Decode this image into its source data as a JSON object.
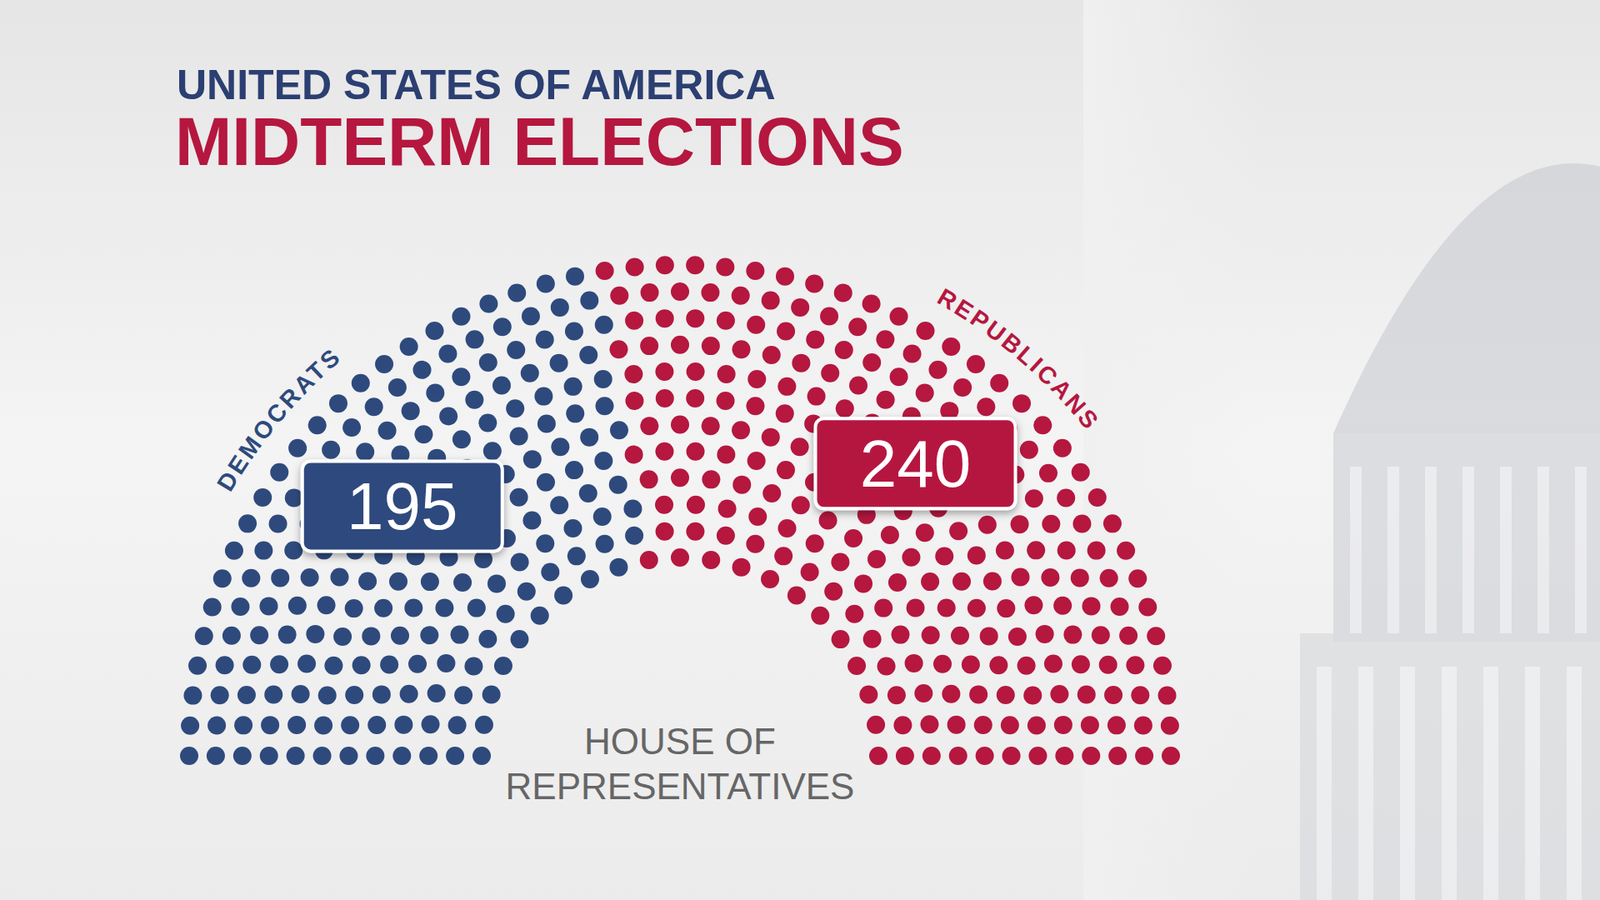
{
  "chart_data": {
    "type": "parliament",
    "title": "UNITED STATES OF AMERICA",
    "subtitle": "MIDTERM ELECTIONS",
    "caption": [
      "HOUSE OF",
      "REPRESENTATIVES"
    ],
    "categories": [
      "DEMOCRATS",
      "REPUBLICANS"
    ],
    "values": [
      195,
      240
    ],
    "colors": [
      "#2e4a7d",
      "#b5173f"
    ],
    "data_labels": true
  }
}
